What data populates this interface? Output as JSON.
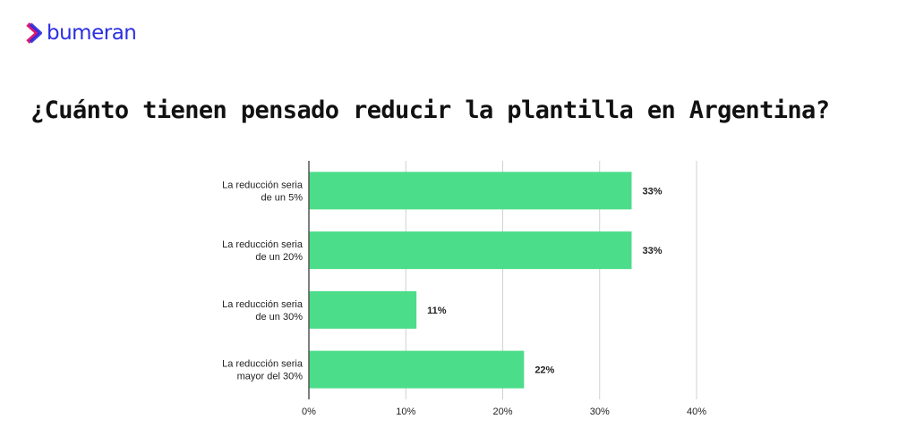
{
  "brand": {
    "name": "bumeran"
  },
  "chart_data": {
    "type": "bar",
    "orientation": "horizontal",
    "title": "¿Cuánto tienen pensado reducir la plantilla en Argentina?",
    "categories": [
      [
        "La reducción seria",
        "de un 5%"
      ],
      [
        "La reducción seria",
        "de un 20%"
      ],
      [
        "La reducción seria",
        "de un 30%"
      ],
      [
        "La reducción seria",
        "mayor del 30%"
      ]
    ],
    "values": [
      33.3,
      33.3,
      11.1,
      22.2
    ],
    "data_labels": [
      "33%",
      "33%",
      "11%",
      "22%"
    ],
    "xlim": [
      0,
      40
    ],
    "x_ticks": [
      "0%",
      "10%",
      "20%",
      "30%",
      "40%"
    ],
    "grid": true,
    "bar_color": "#4cdd8a",
    "xlabel": "",
    "ylabel": ""
  }
}
